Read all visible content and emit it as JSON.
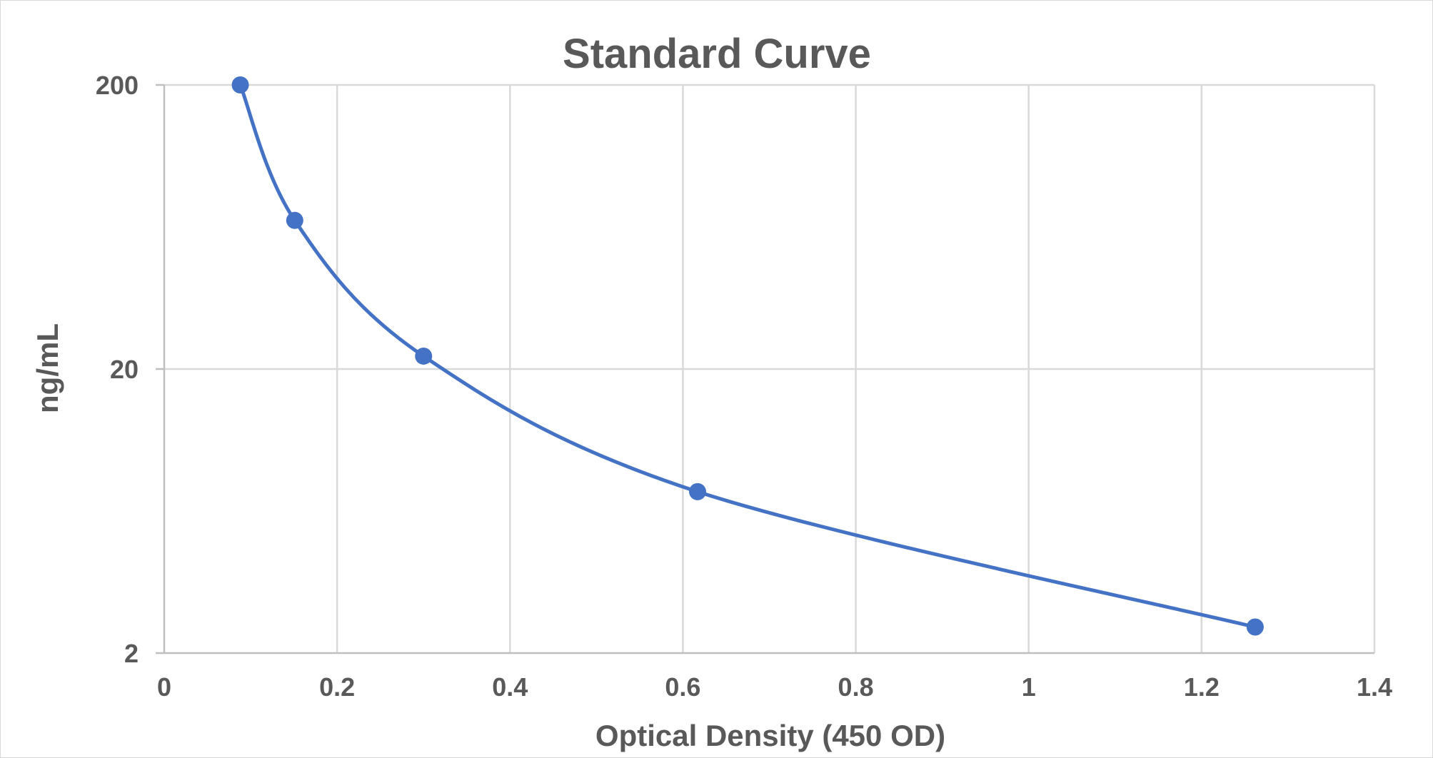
{
  "chart_data": {
    "type": "scatter",
    "title": "Standard Curve",
    "xlabel": "Optical Density (450 OD)",
    "ylabel": "ng/mL",
    "xlim": [
      0,
      1.4
    ],
    "ylim": [
      2,
      200
    ],
    "yscale": "log",
    "x_ticks": [
      0,
      0.2,
      0.4,
      0.6,
      0.8,
      1,
      1.2,
      1.4
    ],
    "x_tick_labels": [
      "0",
      "0.2",
      "0.4",
      "0.6",
      "0.8",
      "1",
      "1.2",
      "1.4"
    ],
    "y_ticks": [
      2,
      20,
      200
    ],
    "y_tick_labels": [
      "2",
      "20",
      "200"
    ],
    "grid": true,
    "legend": "none",
    "smooth_line": true,
    "color": "#4472c4",
    "series": [
      {
        "x": [
          0.088,
          0.151,
          0.3,
          0.617,
          1.262
        ],
        "y": [
          200,
          66.7,
          22.2,
          7.4,
          2.47
        ]
      }
    ]
  }
}
